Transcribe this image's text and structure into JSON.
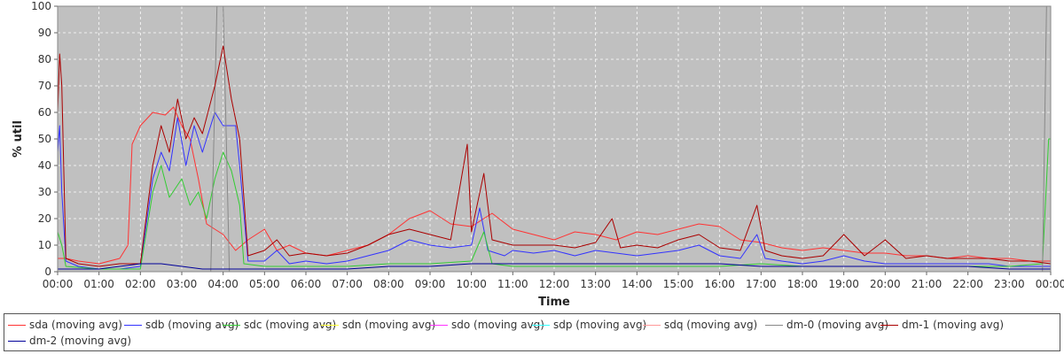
{
  "chart_data": {
    "type": "line",
    "xlabel": "Time",
    "ylabel": "% util",
    "ylim": [
      0,
      100
    ],
    "xlim": [
      0,
      24
    ],
    "grid": true,
    "legend_position": "bottom",
    "yticks": [
      "0",
      "10",
      "20",
      "30",
      "40",
      "50",
      "60",
      "70",
      "80",
      "90",
      "100"
    ],
    "xticks": [
      "00:00",
      "01:00",
      "02:00",
      "03:00",
      "04:00",
      "05:00",
      "06:00",
      "07:00",
      "08:00",
      "09:00",
      "10:00",
      "11:00",
      "12:00",
      "13:00",
      "14:00",
      "15:00",
      "16:00",
      "17:00",
      "18:00",
      "19:00",
      "20:00",
      "21:00",
      "22:00",
      "23:00",
      "00:00"
    ],
    "colors": {
      "plot_bg": "#c0c0c0",
      "grid": "#ffffff"
    },
    "series": [
      {
        "name": "sda (moving avg)",
        "color": "#ff3333",
        "points": [
          [
            0,
            5
          ],
          [
            0.2,
            5
          ],
          [
            0.5,
            4
          ],
          [
            1.0,
            3
          ],
          [
            1.5,
            5
          ],
          [
            1.7,
            10
          ],
          [
            1.8,
            48
          ],
          [
            2.0,
            55
          ],
          [
            2.3,
            60
          ],
          [
            2.6,
            59
          ],
          [
            2.8,
            62
          ],
          [
            3.0,
            55
          ],
          [
            3.2,
            50
          ],
          [
            3.4,
            35
          ],
          [
            3.6,
            18
          ],
          [
            3.8,
            16
          ],
          [
            4.0,
            14
          ],
          [
            4.3,
            8
          ],
          [
            4.6,
            12
          ],
          [
            5.0,
            16
          ],
          [
            5.3,
            8
          ],
          [
            5.6,
            10
          ],
          [
            6.0,
            7
          ],
          [
            6.5,
            6
          ],
          [
            7.0,
            8
          ],
          [
            7.5,
            10
          ],
          [
            8.0,
            14
          ],
          [
            8.5,
            20
          ],
          [
            9.0,
            23
          ],
          [
            9.5,
            18
          ],
          [
            10.0,
            17
          ],
          [
            10.5,
            22
          ],
          [
            11.0,
            16
          ],
          [
            11.5,
            14
          ],
          [
            12.0,
            12
          ],
          [
            12.5,
            15
          ],
          [
            13.0,
            14
          ],
          [
            13.5,
            12
          ],
          [
            14.0,
            15
          ],
          [
            14.5,
            14
          ],
          [
            15.0,
            16
          ],
          [
            15.5,
            18
          ],
          [
            16.0,
            17
          ],
          [
            16.5,
            12
          ],
          [
            17.0,
            11
          ],
          [
            17.5,
            9
          ],
          [
            18.0,
            8
          ],
          [
            18.5,
            9
          ],
          [
            19.0,
            8
          ],
          [
            19.5,
            7
          ],
          [
            20.0,
            7
          ],
          [
            20.5,
            6
          ],
          [
            21.0,
            6
          ],
          [
            21.5,
            5
          ],
          [
            22.0,
            6
          ],
          [
            22.5,
            5
          ],
          [
            23.0,
            5
          ],
          [
            23.5,
            4
          ],
          [
            23.9,
            4
          ],
          [
            24.0,
            4
          ]
        ]
      },
      {
        "name": "sdb (moving avg)",
        "color": "#3333ff",
        "points": [
          [
            0,
            45
          ],
          [
            0.05,
            55
          ],
          [
            0.1,
            30
          ],
          [
            0.2,
            4
          ],
          [
            0.5,
            2
          ],
          [
            1.0,
            1
          ],
          [
            1.5,
            1
          ],
          [
            2.0,
            2
          ],
          [
            2.3,
            35
          ],
          [
            2.5,
            45
          ],
          [
            2.7,
            38
          ],
          [
            2.9,
            58
          ],
          [
            3.1,
            40
          ],
          [
            3.3,
            55
          ],
          [
            3.5,
            45
          ],
          [
            3.8,
            60
          ],
          [
            4.0,
            55
          ],
          [
            4.3,
            55
          ],
          [
            4.4,
            40
          ],
          [
            4.6,
            4
          ],
          [
            5.0,
            4
          ],
          [
            5.3,
            8
          ],
          [
            5.6,
            3
          ],
          [
            6.0,
            4
          ],
          [
            6.5,
            3
          ],
          [
            7.0,
            4
          ],
          [
            7.5,
            6
          ],
          [
            8.0,
            8
          ],
          [
            8.5,
            12
          ],
          [
            9.0,
            10
          ],
          [
            9.5,
            9
          ],
          [
            10.0,
            10
          ],
          [
            10.2,
            24
          ],
          [
            10.4,
            8
          ],
          [
            10.8,
            6
          ],
          [
            11.0,
            8
          ],
          [
            11.5,
            7
          ],
          [
            12.0,
            8
          ],
          [
            12.5,
            6
          ],
          [
            13.0,
            8
          ],
          [
            13.5,
            7
          ],
          [
            14.0,
            6
          ],
          [
            14.5,
            7
          ],
          [
            15.0,
            8
          ],
          [
            15.5,
            10
          ],
          [
            16.0,
            6
          ],
          [
            16.5,
            5
          ],
          [
            16.9,
            14
          ],
          [
            17.1,
            5
          ],
          [
            17.5,
            4
          ],
          [
            18.0,
            3
          ],
          [
            18.5,
            4
          ],
          [
            19.0,
            6
          ],
          [
            19.5,
            4
          ],
          [
            20.0,
            3
          ],
          [
            20.5,
            3
          ],
          [
            21.0,
            3
          ],
          [
            21.5,
            3
          ],
          [
            22.0,
            3
          ],
          [
            22.5,
            3
          ],
          [
            23.0,
            2
          ],
          [
            23.5,
            2
          ],
          [
            24.0,
            2
          ]
        ]
      },
      {
        "name": "sdc (moving avg)",
        "color": "#33cc33",
        "points": [
          [
            0,
            15
          ],
          [
            0.1,
            10
          ],
          [
            0.2,
            2
          ],
          [
            1.0,
            1
          ],
          [
            2.0,
            1
          ],
          [
            2.3,
            30
          ],
          [
            2.5,
            40
          ],
          [
            2.7,
            28
          ],
          [
            3.0,
            35
          ],
          [
            3.2,
            25
          ],
          [
            3.4,
            30
          ],
          [
            3.6,
            20
          ],
          [
            3.8,
            35
          ],
          [
            4.0,
            45
          ],
          [
            4.2,
            38
          ],
          [
            4.4,
            25
          ],
          [
            4.5,
            3
          ],
          [
            5.0,
            2
          ],
          [
            6.0,
            2
          ],
          [
            7.0,
            2
          ],
          [
            8.0,
            3
          ],
          [
            9.0,
            3
          ],
          [
            10.0,
            4
          ],
          [
            10.3,
            15
          ],
          [
            10.5,
            3
          ],
          [
            11.0,
            2
          ],
          [
            12.0,
            2
          ],
          [
            13.0,
            2
          ],
          [
            14.0,
            2
          ],
          [
            15.0,
            2
          ],
          [
            16.0,
            2
          ],
          [
            17.0,
            3
          ],
          [
            18.0,
            2
          ],
          [
            19.0,
            2
          ],
          [
            20.0,
            2
          ],
          [
            21.0,
            2
          ],
          [
            22.0,
            2
          ],
          [
            23.0,
            2
          ],
          [
            23.8,
            3
          ],
          [
            23.95,
            50
          ],
          [
            24.0,
            50
          ]
        ]
      },
      {
        "name": "sdn (moving avg)",
        "color": "#ffff33",
        "points": [
          [
            0,
            0
          ],
          [
            24,
            0
          ]
        ]
      },
      {
        "name": "sdo (moving avg)",
        "color": "#ff33ff",
        "points": [
          [
            0,
            0
          ],
          [
            24,
            0
          ]
        ]
      },
      {
        "name": "sdp (moving avg)",
        "color": "#33ffff",
        "points": [
          [
            0,
            0
          ],
          [
            24,
            0
          ]
        ]
      },
      {
        "name": "sdq (moving avg)",
        "color": "#ff9999",
        "points": [
          [
            0,
            0
          ],
          [
            24,
            0
          ]
        ]
      },
      {
        "name": "dm-0 (moving avg)",
        "color": "#888888",
        "points": [
          [
            0,
            0
          ],
          [
            3.7,
            0
          ],
          [
            3.85,
            100
          ],
          [
            4.0,
            100
          ],
          [
            4.15,
            0
          ],
          [
            23.8,
            0
          ],
          [
            23.9,
            100
          ],
          [
            24.0,
            100
          ]
        ]
      },
      {
        "name": "dm-1 (moving avg)",
        "color": "#aa0000",
        "points": [
          [
            0,
            60
          ],
          [
            0.05,
            82
          ],
          [
            0.1,
            70
          ],
          [
            0.2,
            5
          ],
          [
            0.5,
            3
          ],
          [
            1.0,
            2
          ],
          [
            1.5,
            3
          ],
          [
            2.0,
            3
          ],
          [
            2.3,
            40
          ],
          [
            2.5,
            55
          ],
          [
            2.7,
            45
          ],
          [
            2.9,
            65
          ],
          [
            3.1,
            50
          ],
          [
            3.3,
            58
          ],
          [
            3.5,
            52
          ],
          [
            3.8,
            70
          ],
          [
            4.0,
            85
          ],
          [
            4.2,
            65
          ],
          [
            4.4,
            50
          ],
          [
            4.6,
            6
          ],
          [
            5.0,
            8
          ],
          [
            5.3,
            12
          ],
          [
            5.6,
            6
          ],
          [
            6.0,
            7
          ],
          [
            6.5,
            6
          ],
          [
            7.0,
            7
          ],
          [
            7.5,
            10
          ],
          [
            8.0,
            14
          ],
          [
            8.5,
            16
          ],
          [
            9.0,
            14
          ],
          [
            9.5,
            12
          ],
          [
            9.9,
            48
          ],
          [
            10.0,
            15
          ],
          [
            10.3,
            37
          ],
          [
            10.5,
            12
          ],
          [
            11.0,
            10
          ],
          [
            11.5,
            10
          ],
          [
            12.0,
            10
          ],
          [
            12.5,
            9
          ],
          [
            13.0,
            11
          ],
          [
            13.4,
            20
          ],
          [
            13.6,
            9
          ],
          [
            14.0,
            10
          ],
          [
            14.5,
            9
          ],
          [
            15.0,
            12
          ],
          [
            15.5,
            14
          ],
          [
            16.0,
            9
          ],
          [
            16.5,
            8
          ],
          [
            16.9,
            25
          ],
          [
            17.1,
            8
          ],
          [
            17.5,
            6
          ],
          [
            18.0,
            5
          ],
          [
            18.5,
            6
          ],
          [
            19.0,
            14
          ],
          [
            19.5,
            6
          ],
          [
            20.0,
            12
          ],
          [
            20.5,
            5
          ],
          [
            21.0,
            6
          ],
          [
            21.5,
            5
          ],
          [
            22.0,
            5
          ],
          [
            22.5,
            5
          ],
          [
            23.0,
            4
          ],
          [
            23.5,
            4
          ],
          [
            24.0,
            3
          ]
        ]
      },
      {
        "name": "dm-2 (moving avg)",
        "color": "#000099",
        "points": [
          [
            0,
            1
          ],
          [
            0.5,
            1
          ],
          [
            1.0,
            1
          ],
          [
            1.5,
            2
          ],
          [
            2.0,
            3
          ],
          [
            2.5,
            3
          ],
          [
            3.0,
            2
          ],
          [
            3.5,
            1
          ],
          [
            4.0,
            1
          ],
          [
            4.5,
            1
          ],
          [
            5.0,
            1
          ],
          [
            6.0,
            1
          ],
          [
            7.0,
            1
          ],
          [
            8.0,
            2
          ],
          [
            9.0,
            2
          ],
          [
            10.0,
            3
          ],
          [
            11.0,
            3
          ],
          [
            12.0,
            3
          ],
          [
            13.0,
            3
          ],
          [
            14.0,
            3
          ],
          [
            15.0,
            3
          ],
          [
            16.0,
            3
          ],
          [
            17.0,
            2
          ],
          [
            18.0,
            2
          ],
          [
            19.0,
            2
          ],
          [
            20.0,
            2
          ],
          [
            21.0,
            2
          ],
          [
            22.0,
            2
          ],
          [
            23.0,
            1
          ],
          [
            24.0,
            1
          ]
        ]
      }
    ]
  }
}
